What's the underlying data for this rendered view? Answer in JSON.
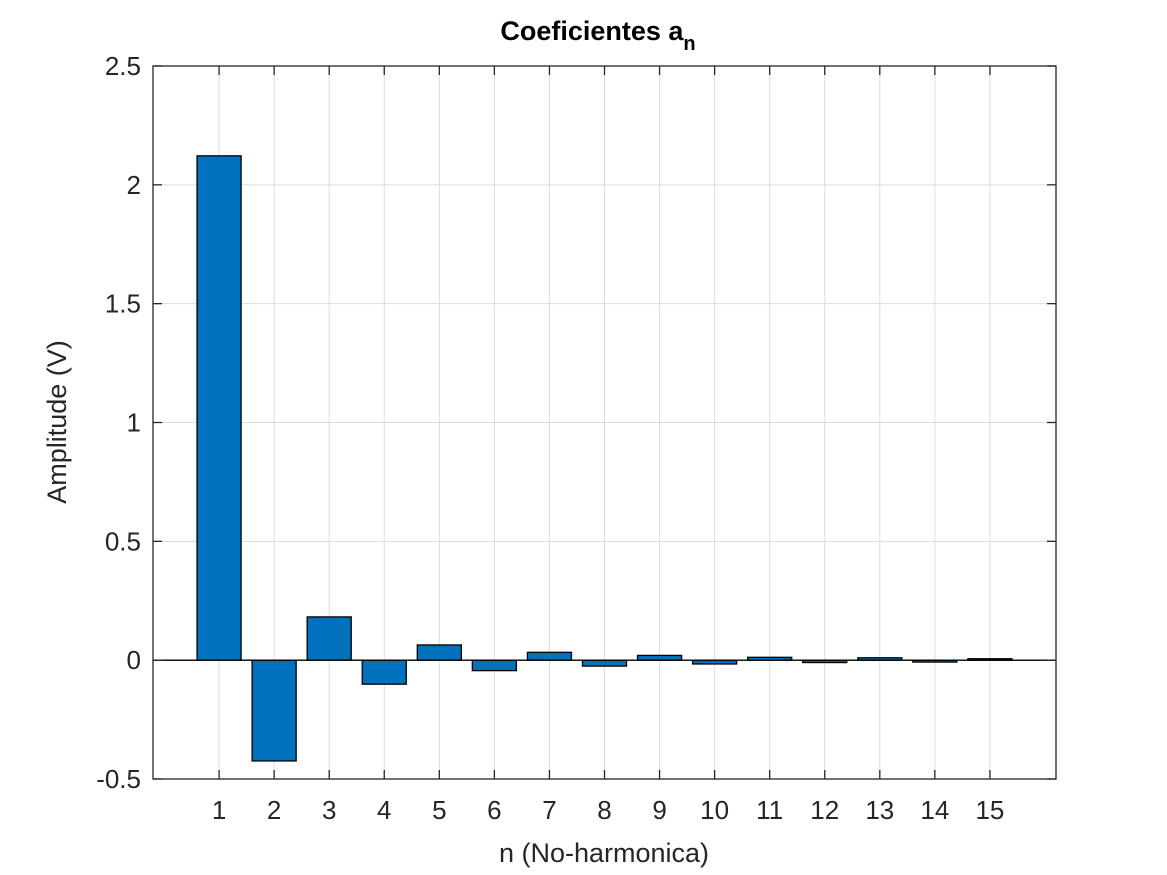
{
  "chart_data": {
    "type": "bar",
    "title": "Coeficientes a",
    "title_subscript": "n",
    "xlabel": "n (No-harmonica)",
    "ylabel": "Amplitude (V)",
    "categories": [
      "1",
      "2",
      "3",
      "4",
      "5",
      "6",
      "7",
      "8",
      "9",
      "10",
      "11",
      "12",
      "13",
      "14",
      "15"
    ],
    "values": [
      2.122,
      -0.424,
      0.182,
      -0.101,
      0.064,
      -0.044,
      0.033,
      -0.025,
      0.02,
      -0.016,
      0.012,
      -0.01,
      0.01,
      -0.008,
      0.006
    ],
    "ylim": [
      -0.5,
      2.5
    ],
    "yticks": [
      "-0.5",
      "0",
      "0.5",
      "1",
      "1.5",
      "2",
      "2.5"
    ],
    "ytick_values": [
      -0.5,
      0,
      0.5,
      1,
      1.5,
      2,
      2.5
    ],
    "xlim": [
      -0.2,
      16.2
    ],
    "grid": true,
    "bar_color": "#0072BD",
    "bar_edge_color": "#000000"
  }
}
